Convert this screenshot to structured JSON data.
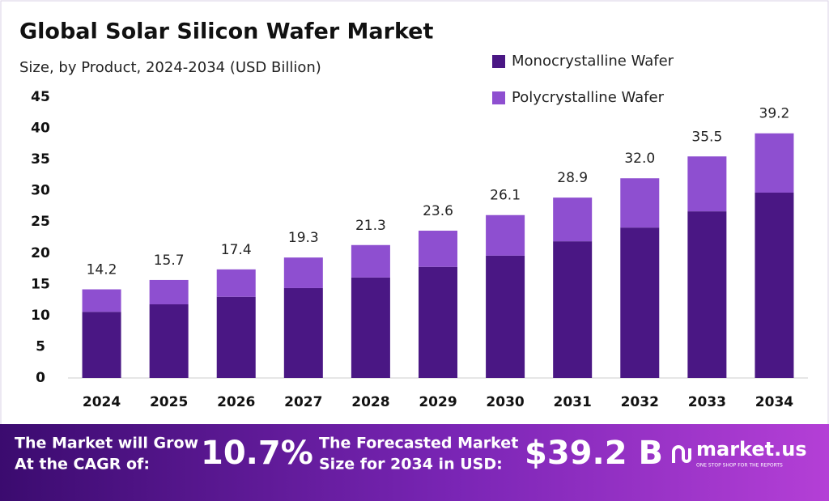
{
  "chart_data": {
    "type": "stacked-bar",
    "title": "Global Solar Silicon Wafer Market",
    "subtitle": "Size, by Product, 2024-2034 (USD Billion)",
    "categories": [
      "2024",
      "2025",
      "2026",
      "2027",
      "2028",
      "2029",
      "2030",
      "2031",
      "2032",
      "2033",
      "2034"
    ],
    "series": [
      {
        "name": "Monocrystalline Wafer",
        "color": "#4a1784",
        "values": [
          10.6,
          11.8,
          13.0,
          14.4,
          16.1,
          17.8,
          19.6,
          21.9,
          24.1,
          26.7,
          29.7
        ]
      },
      {
        "name": "Polycrystalline Wafer",
        "color": "#8e4fd0",
        "values": [
          3.6,
          3.9,
          4.4,
          4.9,
          5.2,
          5.8,
          6.5,
          7.0,
          7.9,
          8.8,
          9.5
        ]
      }
    ],
    "totals": {
      "values": [
        14.2,
        15.7,
        17.4,
        19.3,
        21.3,
        23.6,
        26.1,
        28.9,
        32,
        35.5,
        39.2
      ],
      "value_labels": [
        "14.2",
        "15.7",
        "17.4",
        "19.3",
        "21.3",
        "23.6",
        "26.1",
        "28.9",
        "32.0",
        "35.5",
        "39.2"
      ]
    },
    "ylim": [
      0,
      45
    ],
    "yticks": [
      0,
      5,
      10,
      15,
      20,
      25,
      30,
      35,
      40,
      45
    ],
    "grid": false,
    "legend": "top-right"
  },
  "footer": {
    "cagr_text": [
      "The Market will Grow",
      "At the CAGR of:"
    ],
    "cagr_value": "10.7%",
    "forecast_text": [
      "The Forecasted Market",
      "Size for 2034 in USD:"
    ],
    "forecast_value": "$39.2 B",
    "logo": "market.us",
    "tagline": "ONE STOP SHOP FOR THE REPORTS"
  }
}
